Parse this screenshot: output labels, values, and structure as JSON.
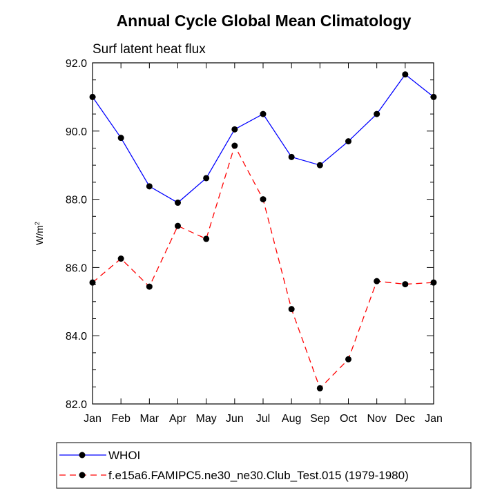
{
  "chart_data": {
    "type": "line",
    "title": "Annual Cycle Global Mean Climatology",
    "subtitle": "Surf latent heat flux",
    "ylabel_base": "W/m",
    "ylabel_sup": "2",
    "categories": [
      "Jan",
      "Feb",
      "Mar",
      "Apr",
      "May",
      "Jun",
      "Jul",
      "Aug",
      "Sep",
      "Oct",
      "Nov",
      "Dec",
      "Jan"
    ],
    "ylim": [
      82.0,
      92.0
    ],
    "yticks": [
      "82.0",
      "84.0",
      "86.0",
      "88.0",
      "90.0",
      "92.0"
    ],
    "series": [
      {
        "name": "WHOI",
        "color": "#0000ff",
        "style": "solid",
        "values": [
          91.0,
          89.8,
          88.38,
          87.9,
          88.62,
          90.05,
          90.5,
          89.24,
          89.0,
          89.7,
          90.5,
          91.66,
          91.0
        ]
      },
      {
        "name": "f.e15a6.FAMIPC5.ne30_ne30.Club_Test.015 (1979-1980)",
        "color": "#ff0000",
        "style": "dashed",
        "values": [
          85.56,
          86.26,
          85.44,
          87.22,
          86.84,
          89.57,
          88.0,
          84.78,
          82.46,
          83.31,
          85.6,
          85.51,
          85.56
        ]
      }
    ],
    "grid": false,
    "legend_position": "bottom"
  }
}
